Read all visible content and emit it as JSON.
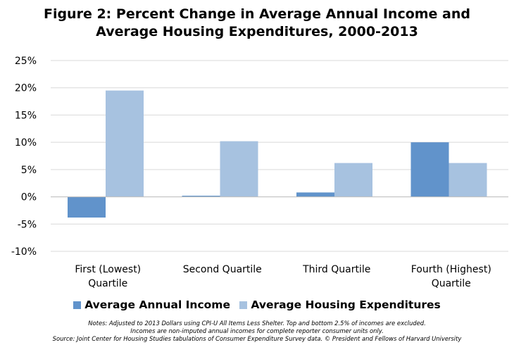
{
  "title": {
    "line1": "Figure 2: Percent Change in Average Annual Income and",
    "line2": "Average Housing Expenditures, 2000-2013"
  },
  "chart_data": {
    "type": "bar",
    "title": "Figure 2: Percent Change in Average Annual Income and Average Housing Expenditures, 2000-2013",
    "categories": [
      [
        "First (Lowest)",
        "Quartile"
      ],
      [
        "Second Quartile"
      ],
      [
        "Third Quartile"
      ],
      [
        "Fourth (Highest)",
        "Quartile"
      ]
    ],
    "series": [
      {
        "name": "Average Annual Income",
        "color": "#6193CB",
        "values": [
          -3.8,
          0.2,
          0.8,
          10.0
        ]
      },
      {
        "name": "Average Housing Expenditures",
        "color": "#A7C2E0",
        "values": [
          19.5,
          10.2,
          6.2,
          6.2
        ]
      }
    ],
    "ylim": [
      -10,
      25
    ],
    "yticks": [
      -10,
      -5,
      0,
      5,
      10,
      15,
      20,
      25
    ],
    "ytick_labels": [
      "-10%",
      "-5%",
      "0%",
      "5%",
      "10%",
      "15%",
      "20%",
      "25%"
    ],
    "grid": true,
    "legend": "bottom"
  },
  "notes": {
    "line1": "Notes: Adjusted to 2013 Dollars using CPI-U All Items Less Shelter. Top and bottom 2.5% of incomes are excluded.",
    "line2": "Incomes are non-imputed annual incomes for complete reporter consumer units only.",
    "line3": "Source: Joint Center for Housing Studies tabulations of Consumer Expenditure Survey data.  © President and Fellows of Harvard University"
  }
}
